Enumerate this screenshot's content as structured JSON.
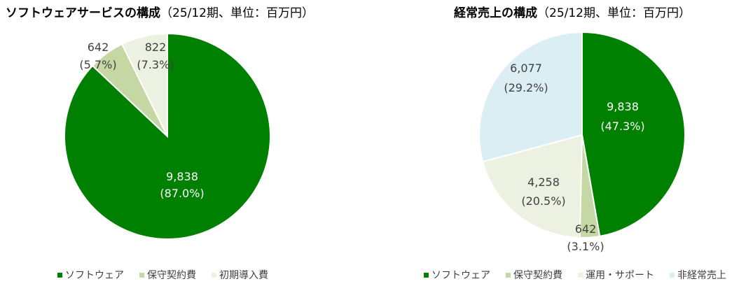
{
  "chart_data": [
    {
      "type": "pie",
      "title": "ソフトウェアサービスの構成",
      "subtitle": "（25/12期、単位：百万円）",
      "slices": [
        {
          "name": "ソフトウェア",
          "value": 9838,
          "percent": "87.0%",
          "value_label": "9,838",
          "color": "#008000",
          "label_color": "#ffffff"
        },
        {
          "name": "保守契約費",
          "value": 642,
          "percent": "5.7%",
          "value_label": "642",
          "color": "#C5D8A4",
          "label_color": "#404040"
        },
        {
          "name": "初期導入費",
          "value": 822,
          "percent": "7.3%",
          "value_label": "822",
          "color": "#ECF1E2",
          "label_color": "#404040"
        }
      ],
      "legend": "bottom"
    },
    {
      "type": "pie",
      "title": "経常売上の構成",
      "subtitle": "（25/12期、単位：百万円）",
      "slices": [
        {
          "name": "ソフトウェア",
          "value": 9838,
          "percent": "47.3%",
          "value_label": "9,838",
          "color": "#008000",
          "label_color": "#ffffff"
        },
        {
          "name": "保守契約費",
          "value": 642,
          "percent": "3.1%",
          "value_label": "642",
          "color": "#C5D8A4",
          "label_color": "#404040"
        },
        {
          "name": "運用・サポート",
          "value": 4258,
          "percent": "20.5%",
          "value_label": "4,258",
          "color": "#ECF1E2",
          "label_color": "#404040"
        },
        {
          "name": "非経常売上",
          "value": 6077,
          "percent": "29.2%",
          "value_label": "6,077",
          "color": "#DBEEF4",
          "label_color": "#404040"
        }
      ],
      "legend": "bottom"
    }
  ]
}
